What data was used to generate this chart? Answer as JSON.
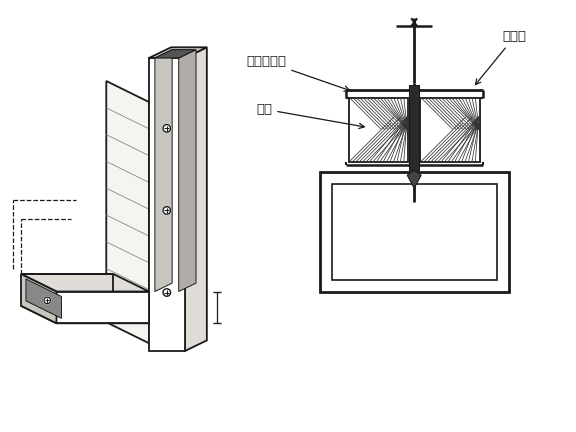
{
  "bg_color": "#ffffff",
  "line_color": "#1a1a1a",
  "label1": "金属压条槽",
  "label2": "木条",
  "label3": "玻璃板",
  "lw": 1.3
}
